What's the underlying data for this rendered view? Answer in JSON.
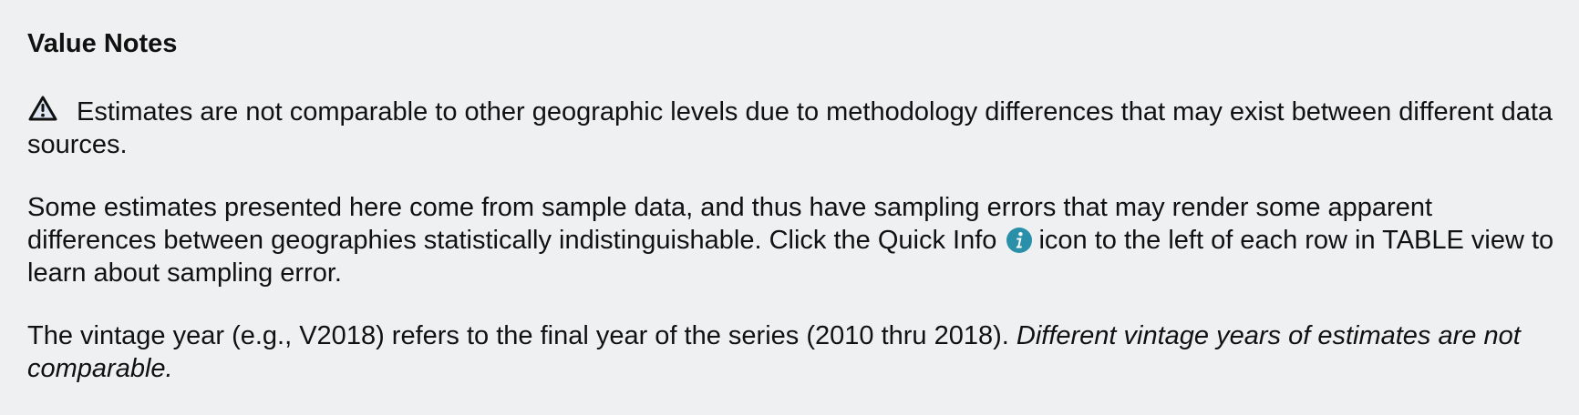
{
  "notes": {
    "heading": "Value Notes",
    "warning_text": "Estimates are not comparable to other geographic levels due to methodology differences that may exist between different data sources.",
    "sampling_text_before_icon": "Some estimates presented here come from sample data, and thus have sampling errors that may render some apparent differences between geographies statistically indistinguishable. Click the Quick Info",
    "sampling_text_after_icon": "icon to the left of each row in TABLE view to learn about sampling error.",
    "vintage_text": "The vintage year (e.g., V2018) refers to the final year of the series (2010 thru 2018).",
    "vintage_emphasis": "Different vintage years of estimates are not comparable.",
    "icons": {
      "warning": "warning-triangle-icon",
      "info": "quick-info-icon"
    },
    "colors": {
      "background": "#eff0f2",
      "text": "#111111",
      "info_icon": "#2a8fa8"
    }
  }
}
